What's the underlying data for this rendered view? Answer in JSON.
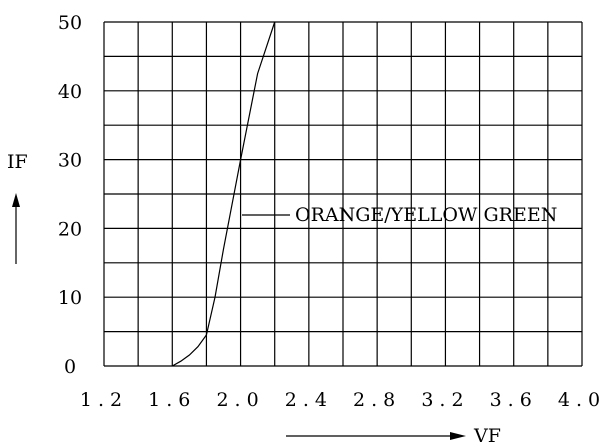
{
  "chart_data": {
    "type": "line",
    "xlabel": "VF",
    "ylabel": "IF",
    "xlim": [
      1.2,
      4.0
    ],
    "ylim": [
      0,
      50
    ],
    "grid": true,
    "x_ticks": [
      "1.2",
      "1.6",
      "2.0",
      "2.4",
      "2.8",
      "3.2",
      "3.6",
      "4.0"
    ],
    "y_ticks": [
      "0",
      "10",
      "20",
      "30",
      "40",
      "50"
    ],
    "series": [
      {
        "name": "ORANGE/YELLOW GREEN",
        "x": [
          1.6,
          1.65,
          1.7,
          1.75,
          1.8,
          1.85,
          1.9,
          2.0,
          2.1,
          2.2
        ],
        "y": [
          0,
          0.7,
          1.6,
          2.8,
          4.5,
          10.0,
          17.0,
          30.0,
          42.5,
          50.0
        ]
      }
    ],
    "annotations": [
      {
        "text": "ORANGE/YELLOW GREEN",
        "x": 2.0,
        "y": 22
      }
    ]
  }
}
